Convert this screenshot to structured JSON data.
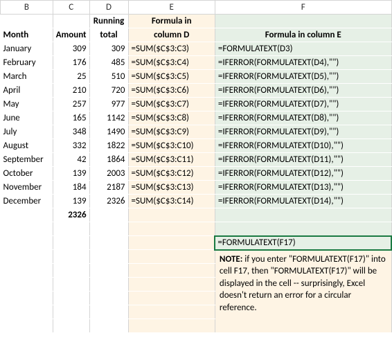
{
  "columns": {
    "B": "B",
    "C": "C",
    "D": "D",
    "E": "E",
    "F": "F"
  },
  "headers": {
    "row1": {
      "D": "Running",
      "E": "Formula in"
    },
    "row2": {
      "B": "Month",
      "C": "Amount",
      "D": "total",
      "E": "column D",
      "F": "Formula in column E"
    }
  },
  "rows": [
    {
      "month": "January",
      "amount": "309",
      "running": "309",
      "colE": "=SUM($C$3:C3)",
      "colF": "=FORMULATEXT(D3)"
    },
    {
      "month": "February",
      "amount": "176",
      "running": "485",
      "colE": "=SUM($C$3:C4)",
      "colF": "=IFERROR(FORMULATEXT(D4),\"\")"
    },
    {
      "month": "March",
      "amount": "25",
      "running": "510",
      "colE": "=SUM($C$3:C5)",
      "colF": "=IFERROR(FORMULATEXT(D5),\"\")"
    },
    {
      "month": "April",
      "amount": "210",
      "running": "720",
      "colE": "=SUM($C$3:C6)",
      "colF": "=IFERROR(FORMULATEXT(D6),\"\")"
    },
    {
      "month": "May",
      "amount": "257",
      "running": "977",
      "colE": "=SUM($C$3:C7)",
      "colF": "=IFERROR(FORMULATEXT(D7),\"\")"
    },
    {
      "month": "June",
      "amount": "165",
      "running": "1142",
      "colE": "=SUM($C$3:C8)",
      "colF": "=IFERROR(FORMULATEXT(D8),\"\")"
    },
    {
      "month": "July",
      "amount": "348",
      "running": "1490",
      "colE": "=SUM($C$3:C9)",
      "colF": "=IFERROR(FORMULATEXT(D9),\"\")"
    },
    {
      "month": "August",
      "amount": "332",
      "running": "1822",
      "colE": "=SUM($C$3:C10)",
      "colF": "=IFERROR(FORMULATEXT(D10),\"\")"
    },
    {
      "month": "September",
      "amount": "42",
      "running": "1864",
      "colE": "=SUM($C$3:C11)",
      "colF": "=IFERROR(FORMULATEXT(D11),\"\")"
    },
    {
      "month": "October",
      "amount": "139",
      "running": "2003",
      "colE": "=SUM($C$3:C12)",
      "colF": "=IFERROR(FORMULATEXT(D12),\"\")"
    },
    {
      "month": "November",
      "amount": "184",
      "running": "2187",
      "colE": "=SUM($C$3:C13)",
      "colF": "=IFERROR(FORMULATEXT(D13),\"\")"
    },
    {
      "month": "December",
      "amount": "139",
      "running": "2326",
      "colE": "=SUM($C$3:C14)",
      "colF": "=IFERROR(FORMULATEXT(D14),\"\")"
    }
  ],
  "total": {
    "amount": "2326"
  },
  "selected_cell": {
    "value": "=FORMULATEXT(F17)"
  },
  "note": {
    "bold": "NOTE:",
    "text": " if you enter \"FORMULATEXT(F17)\" into cell F17, then \"FORMULATEXT(F17)\" will be displayed in the cell -- surprisingly, Excel doesn't return an error for a circular reference."
  },
  "colors": {
    "col_e_bg": "#fef4e4",
    "col_f_bg": "#e6f0e6",
    "selection_border": "#1a7a42",
    "grid": "#d4d4d4"
  }
}
